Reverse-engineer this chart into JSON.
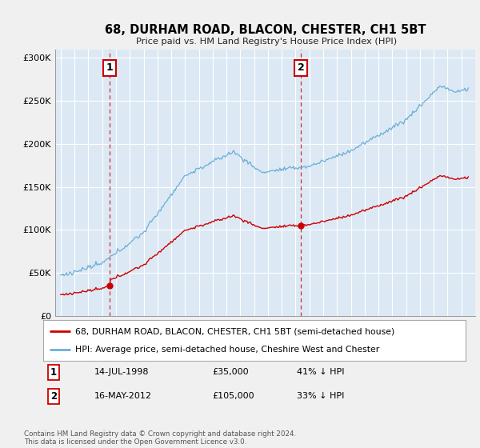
{
  "title": "68, DURHAM ROAD, BLACON, CHESTER, CH1 5BT",
  "subtitle": "Price paid vs. HM Land Registry's House Price Index (HPI)",
  "ylim": [
    0,
    310000
  ],
  "yticks": [
    0,
    50000,
    100000,
    150000,
    200000,
    250000,
    300000
  ],
  "ytick_labels": [
    "£0",
    "£50K",
    "£100K",
    "£150K",
    "£200K",
    "£250K",
    "£300K"
  ],
  "hpi_color": "#6baed6",
  "sale_color": "#cc0000",
  "marker1_date": 1998.54,
  "marker1_price": 35000,
  "marker1_label": "1",
  "marker1_hpi_pct": "41% ↓ HPI",
  "marker1_date_str": "14-JUL-1998",
  "marker2_date": 2012.37,
  "marker2_price": 105000,
  "marker2_label": "2",
  "marker2_hpi_pct": "33% ↓ HPI",
  "marker2_date_str": "16-MAY-2012",
  "legend_line1": "68, DURHAM ROAD, BLACON, CHESTER, CH1 5BT (semi-detached house)",
  "legend_line2": "HPI: Average price, semi-detached house, Cheshire West and Chester",
  "footer": "Contains HM Land Registry data © Crown copyright and database right 2024.\nThis data is licensed under the Open Government Licence v3.0.",
  "background_color": "#f0f0f0",
  "plot_background": "#dce9f5",
  "grid_color": "#ffffff"
}
